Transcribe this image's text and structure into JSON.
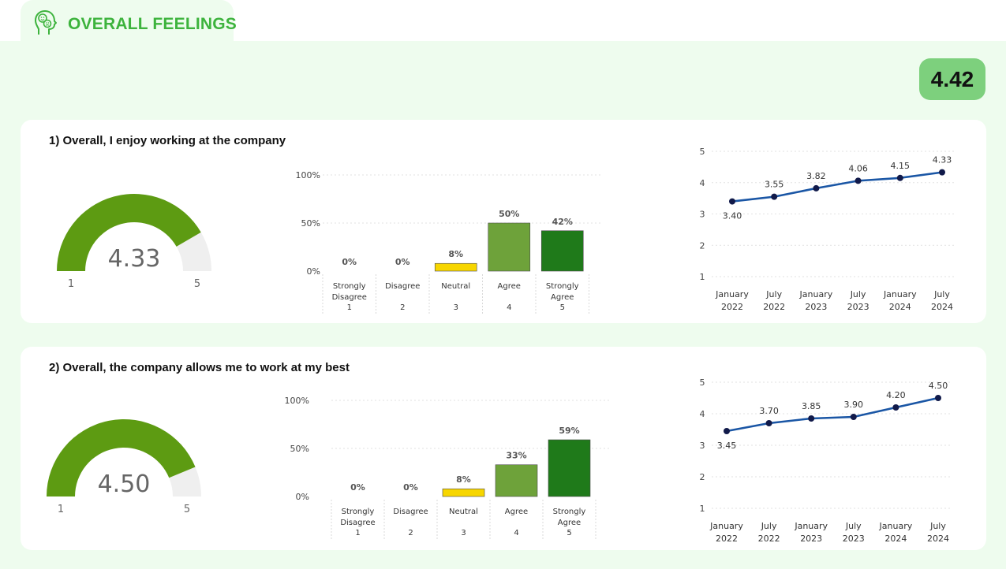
{
  "header": {
    "title": "OVERALL FEELINGS",
    "overall_score": "4.42",
    "icon": "head-with-smiley-icon"
  },
  "colors": {
    "accent": "#3db33d",
    "badge": "#7dd07d",
    "gauge_fill": "#5d9b12",
    "gauge_track": "#efefef",
    "line": "#1a56a5",
    "marker": "#111a4a",
    "neutral": "#f7d600",
    "agree": "#6ea23a",
    "strongly_agree": "#1f7a1a",
    "other": "#c9c9c9"
  },
  "questions": [
    {
      "title": "1) Overall, I enjoy working at the company",
      "gauge": {
        "value": 4.33,
        "value_label": "4.33",
        "min": 1,
        "max": 5,
        "min_label": "1",
        "max_label": "5"
      },
      "distribution": {
        "y_ticks": [
          "100%",
          "50%",
          "0%"
        ],
        "categories": [
          {
            "label": [
              "Strongly",
              "Disagree",
              "1"
            ],
            "value": 0,
            "value_label": "0%"
          },
          {
            "label": [
              "Disagree",
              "",
              "2"
            ],
            "value": 0,
            "value_label": "0%"
          },
          {
            "label": [
              "Neutral",
              "",
              "3"
            ],
            "value": 8,
            "value_label": "8%"
          },
          {
            "label": [
              "Agree",
              "",
              "4"
            ],
            "value": 50,
            "value_label": "50%"
          },
          {
            "label": [
              "Strongly",
              "Agree",
              "5"
            ],
            "value": 42,
            "value_label": "42%"
          }
        ]
      },
      "trend": {
        "y_ticks": [
          "5",
          "4",
          "3",
          "2",
          "1"
        ],
        "points": [
          {
            "x": [
              "January",
              "2022"
            ],
            "value": 3.4,
            "label": "3.40"
          },
          {
            "x": [
              "July",
              "2022"
            ],
            "value": 3.55,
            "label": "3.55"
          },
          {
            "x": [
              "January",
              "2023"
            ],
            "value": 3.82,
            "label": "3.82"
          },
          {
            "x": [
              "July",
              "2023"
            ],
            "value": 4.06,
            "label": "4.06"
          },
          {
            "x": [
              "January",
              "2024"
            ],
            "value": 4.15,
            "label": "4.15"
          },
          {
            "x": [
              "July",
              "2024"
            ],
            "value": 4.33,
            "label": "4.33"
          }
        ]
      }
    },
    {
      "title": "2) Overall, the company allows me to work at my best",
      "gauge": {
        "value": 4.5,
        "value_label": "4.50",
        "min": 1,
        "max": 5,
        "min_label": "1",
        "max_label": "5"
      },
      "distribution": {
        "y_ticks": [
          "100%",
          "50%",
          "0%"
        ],
        "categories": [
          {
            "label": [
              "Strongly",
              "Disagree",
              "1"
            ],
            "value": 0,
            "value_label": "0%"
          },
          {
            "label": [
              "Disagree",
              "",
              "2"
            ],
            "value": 0,
            "value_label": "0%"
          },
          {
            "label": [
              "Neutral",
              "",
              "3"
            ],
            "value": 8,
            "value_label": "8%"
          },
          {
            "label": [
              "Agree",
              "",
              "4"
            ],
            "value": 33,
            "value_label": "33%"
          },
          {
            "label": [
              "Strongly",
              "Agree",
              "5"
            ],
            "value": 59,
            "value_label": "59%"
          }
        ]
      },
      "trend": {
        "y_ticks": [
          "5",
          "4",
          "3",
          "2",
          "1"
        ],
        "points": [
          {
            "x": [
              "January",
              "2022"
            ],
            "value": 3.45,
            "label": "3.45"
          },
          {
            "x": [
              "July",
              "2022"
            ],
            "value": 3.7,
            "label": "3.70"
          },
          {
            "x": [
              "January",
              "2023"
            ],
            "value": 3.85,
            "label": "3.85"
          },
          {
            "x": [
              "July",
              "2023"
            ],
            "value": 3.9,
            "label": "3.90"
          },
          {
            "x": [
              "January",
              "2024"
            ],
            "value": 4.2,
            "label": "4.20"
          },
          {
            "x": [
              "July",
              "2024"
            ],
            "value": 4.5,
            "label": "4.50"
          }
        ]
      }
    }
  ],
  "chart_data": [
    {
      "type": "gauge",
      "title": "1) Overall, I enjoy working at the company",
      "value": 4.33,
      "min": 1,
      "max": 5
    },
    {
      "type": "bar",
      "title": "1) Overall, I enjoy working at the company",
      "categories": [
        "Strongly Disagree 1",
        "Disagree 2",
        "Neutral 3",
        "Agree 4",
        "Strongly Agree 5"
      ],
      "values": [
        0,
        0,
        8,
        50,
        42
      ],
      "ylabel": "%",
      "ylim": [
        0,
        100
      ]
    },
    {
      "type": "line",
      "title": "1) Overall, I enjoy working at the company",
      "x": [
        "January 2022",
        "July 2022",
        "January 2023",
        "July 2023",
        "January 2024",
        "July 2024"
      ],
      "values": [
        3.4,
        3.55,
        3.82,
        4.06,
        4.15,
        4.33
      ],
      "ylim": [
        1,
        5
      ]
    },
    {
      "type": "gauge",
      "title": "2) Overall, the company allows me to work at my best",
      "value": 4.5,
      "min": 1,
      "max": 5
    },
    {
      "type": "bar",
      "title": "2) Overall, the company allows me to work at my best",
      "categories": [
        "Strongly Disagree 1",
        "Disagree 2",
        "Neutral 3",
        "Agree 4",
        "Strongly Agree 5"
      ],
      "values": [
        0,
        0,
        8,
        33,
        59
      ],
      "ylabel": "%",
      "ylim": [
        0,
        100
      ]
    },
    {
      "type": "line",
      "title": "2) Overall, the company allows me to work at my best",
      "x": [
        "January 2022",
        "July 2022",
        "January 2023",
        "July 2023",
        "January 2024",
        "July 2024"
      ],
      "values": [
        3.45,
        3.7,
        3.85,
        3.9,
        4.2,
        4.5
      ],
      "ylim": [
        1,
        5
      ]
    }
  ]
}
